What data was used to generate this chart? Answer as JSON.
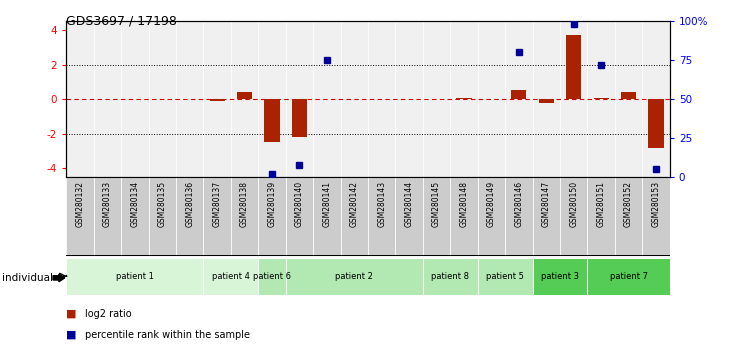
{
  "title": "GDS3697 / 17198",
  "samples": [
    "GSM280132",
    "GSM280133",
    "GSM280134",
    "GSM280135",
    "GSM280136",
    "GSM280137",
    "GSM280138",
    "GSM280139",
    "GSM280140",
    "GSM280141",
    "GSM280142",
    "GSM280143",
    "GSM280144",
    "GSM280145",
    "GSM280148",
    "GSM280149",
    "GSM280146",
    "GSM280147",
    "GSM280150",
    "GSM280151",
    "GSM280152",
    "GSM280153"
  ],
  "log2_ratios": [
    0,
    0,
    0,
    0,
    0,
    -0.12,
    0.42,
    -2.5,
    -2.2,
    0,
    0,
    0,
    0,
    0,
    0.05,
    0,
    0.5,
    -0.25,
    3.7,
    0.05,
    0.42,
    -2.8
  ],
  "percentile_ranks": [
    null,
    null,
    null,
    null,
    null,
    null,
    null,
    2,
    8,
    75,
    null,
    null,
    null,
    null,
    null,
    null,
    80,
    null,
    98,
    72,
    null,
    5
  ],
  "patients": [
    {
      "label": "patient 1",
      "start": 0,
      "end": 5,
      "color": "#d8f5d8"
    },
    {
      "label": "patient 4",
      "start": 5,
      "end": 7,
      "color": "#d8f5d8"
    },
    {
      "label": "patient 6",
      "start": 7,
      "end": 8,
      "color": "#b2e8b2"
    },
    {
      "label": "patient 2",
      "start": 8,
      "end": 13,
      "color": "#b2e8b2"
    },
    {
      "label": "patient 8",
      "start": 13,
      "end": 15,
      "color": "#b2e8b2"
    },
    {
      "label": "patient 5",
      "start": 15,
      "end": 17,
      "color": "#b2e8b2"
    },
    {
      "label": "patient 3",
      "start": 17,
      "end": 19,
      "color": "#55cc55"
    },
    {
      "label": "patient 7",
      "start": 19,
      "end": 22,
      "color": "#55cc55"
    }
  ],
  "ylim_left": [
    -4.5,
    4.5
  ],
  "ylim_right": [
    0,
    100
  ],
  "yticks_left": [
    -4,
    -2,
    0,
    2,
    4
  ],
  "yticks_right": [
    0,
    25,
    50,
    75,
    100
  ],
  "ytick_right_labels": [
    "0",
    "25",
    "50",
    "75",
    "100%"
  ],
  "bar_color": "#aa2200",
  "dot_color": "#000099",
  "line_color_zero": "#cc0000",
  "background_color": "#ffffff",
  "plot_bg": "#f0f0f0",
  "label_bg": "#cccccc"
}
